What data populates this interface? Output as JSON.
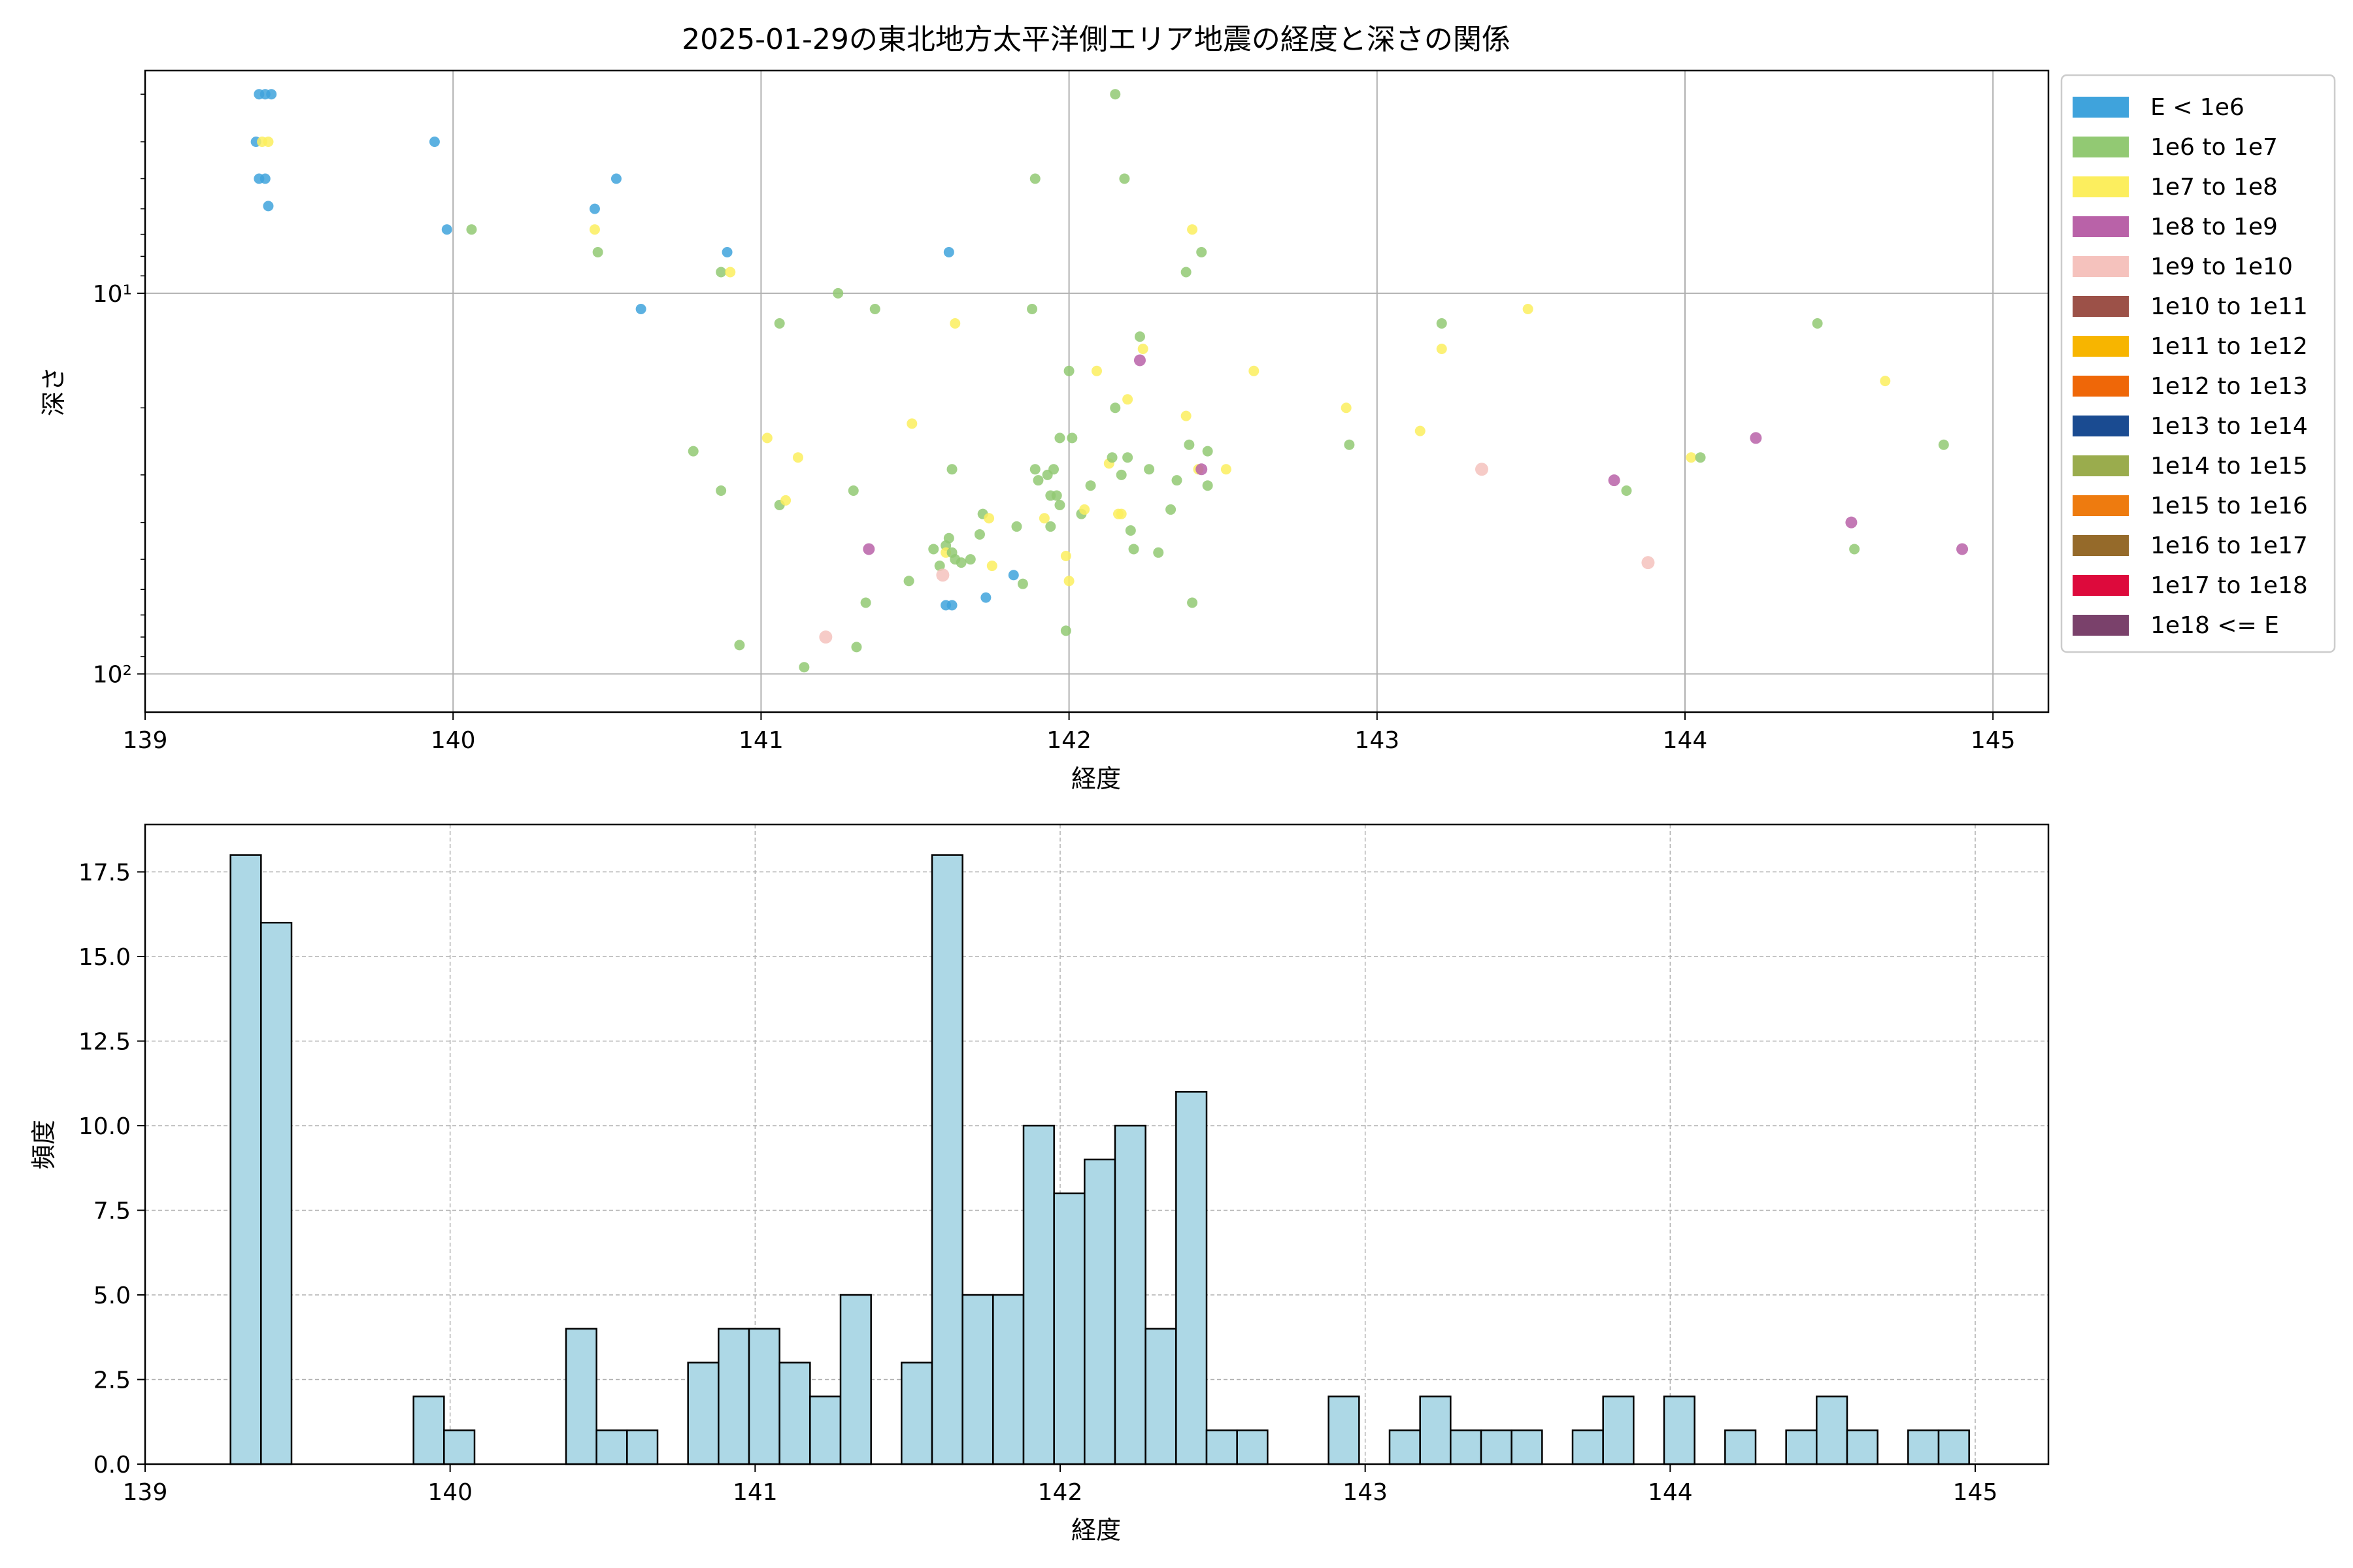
{
  "chart_data": [
    {
      "type": "scatter",
      "title": "2025-01-29の東北地方太平洋側エリア地震の経度と深さの関係",
      "xlabel": "経度",
      "ylabel": "深さ",
      "xlim": [
        139,
        145.18
      ],
      "ylim": [
        2.6,
        126
      ],
      "yscale": "log",
      "y_inverted": true,
      "grid": true,
      "legend_position": "outside-right",
      "xticks": [
        139,
        140,
        141,
        142,
        143,
        144,
        145
      ],
      "xtick_labels": [
        "139",
        "140",
        "141",
        "142",
        "143",
        "144",
        "145"
      ],
      "yticks": [
        10,
        100
      ],
      "ytick_labels": [
        "10¹",
        "10²"
      ],
      "legend": [
        {
          "label": "E < 1e6",
          "color": "#3fa3dc"
        },
        {
          "label": "1e6 to 1e7",
          "color": "#92c973"
        },
        {
          "label": "1e7 to 1e8",
          "color": "#fcee5e"
        },
        {
          "label": "1e8 to 1e9",
          "color": "#b962a8"
        },
        {
          "label": "1e9 to 1e10",
          "color": "#f5c2bd"
        },
        {
          "label": "1e10 to 1e11",
          "color": "#9c5148"
        },
        {
          "label": "1e11 to 1e12",
          "color": "#f7b500"
        },
        {
          "label": "1e12 to 1e13",
          "color": "#ef6708"
        },
        {
          "label": "1e13 to 1e14",
          "color": "#1a4b91"
        },
        {
          "label": "1e14 to 1e15",
          "color": "#9aac4d"
        },
        {
          "label": "1e15 to 1e16",
          "color": "#ee7b0f"
        },
        {
          "label": "1e16 to 1e17",
          "color": "#956a2a"
        },
        {
          "label": "1e17 to 1e18",
          "color": "#dd0a3c"
        },
        {
          "label": "1e18 <= E",
          "color": "#7a416b"
        }
      ],
      "points": [
        {
          "x": 139.37,
          "y": 3.0,
          "c": 0
        },
        {
          "x": 139.39,
          "y": 3.0,
          "c": 0
        },
        {
          "x": 139.41,
          "y": 3.0,
          "c": 0
        },
        {
          "x": 139.36,
          "y": 4.0,
          "c": 0
        },
        {
          "x": 139.38,
          "y": 4.0,
          "c": 2
        },
        {
          "x": 139.4,
          "y": 4.0,
          "c": 2
        },
        {
          "x": 139.37,
          "y": 5.0,
          "c": 0
        },
        {
          "x": 139.39,
          "y": 5.0,
          "c": 0
        },
        {
          "x": 139.4,
          "y": 5.9,
          "c": 0
        },
        {
          "x": 139.94,
          "y": 4.0,
          "c": 0
        },
        {
          "x": 139.98,
          "y": 6.8,
          "c": 0
        },
        {
          "x": 140.06,
          "y": 6.8,
          "c": 1
        },
        {
          "x": 140.46,
          "y": 6.0,
          "c": 0
        },
        {
          "x": 140.46,
          "y": 6.8,
          "c": 2
        },
        {
          "x": 140.47,
          "y": 7.8,
          "c": 1
        },
        {
          "x": 140.53,
          "y": 5.0,
          "c": 0
        },
        {
          "x": 140.61,
          "y": 11.0,
          "c": 0
        },
        {
          "x": 140.87,
          "y": 8.8,
          "c": 1
        },
        {
          "x": 140.9,
          "y": 8.8,
          "c": 2
        },
        {
          "x": 140.89,
          "y": 7.8,
          "c": 0
        },
        {
          "x": 140.78,
          "y": 26.0,
          "c": 1
        },
        {
          "x": 140.87,
          "y": 33.0,
          "c": 1
        },
        {
          "x": 140.93,
          "y": 84.0,
          "c": 1
        },
        {
          "x": 141.02,
          "y": 24.0,
          "c": 2
        },
        {
          "x": 141.06,
          "y": 12.0,
          "c": 1
        },
        {
          "x": 141.06,
          "y": 36.0,
          "c": 1
        },
        {
          "x": 141.08,
          "y": 35.0,
          "c": 2
        },
        {
          "x": 141.12,
          "y": 27.0,
          "c": 2
        },
        {
          "x": 141.14,
          "y": 96.0,
          "c": 1
        },
        {
          "x": 141.21,
          "y": 80.0,
          "c": 4
        },
        {
          "x": 141.25,
          "y": 10.0,
          "c": 1
        },
        {
          "x": 141.3,
          "y": 33.0,
          "c": 1
        },
        {
          "x": 141.31,
          "y": 85.0,
          "c": 1
        },
        {
          "x": 141.34,
          "y": 65.0,
          "c": 1
        },
        {
          "x": 141.35,
          "y": 47.0,
          "c": 3
        },
        {
          "x": 141.37,
          "y": 11.0,
          "c": 1
        },
        {
          "x": 141.48,
          "y": 57.0,
          "c": 1
        },
        {
          "x": 141.49,
          "y": 22.0,
          "c": 2
        },
        {
          "x": 141.56,
          "y": 47.0,
          "c": 1
        },
        {
          "x": 141.58,
          "y": 52.0,
          "c": 1
        },
        {
          "x": 141.59,
          "y": 55.0,
          "c": 4
        },
        {
          "x": 141.6,
          "y": 46.0,
          "c": 1
        },
        {
          "x": 141.6,
          "y": 48.0,
          "c": 2
        },
        {
          "x": 141.61,
          "y": 44.0,
          "c": 1
        },
        {
          "x": 141.62,
          "y": 48.0,
          "c": 1
        },
        {
          "x": 141.63,
          "y": 50.0,
          "c": 1
        },
        {
          "x": 141.6,
          "y": 66.0,
          "c": 0
        },
        {
          "x": 141.62,
          "y": 66.0,
          "c": 0
        },
        {
          "x": 141.61,
          "y": 7.8,
          "c": 0
        },
        {
          "x": 141.62,
          "y": 29.0,
          "c": 1
        },
        {
          "x": 141.63,
          "y": 12.0,
          "c": 2
        },
        {
          "x": 141.65,
          "y": 51.0,
          "c": 1
        },
        {
          "x": 141.68,
          "y": 50.0,
          "c": 1
        },
        {
          "x": 141.71,
          "y": 43.0,
          "c": 1
        },
        {
          "x": 141.72,
          "y": 38.0,
          "c": 1
        },
        {
          "x": 141.73,
          "y": 63.0,
          "c": 0
        },
        {
          "x": 141.74,
          "y": 39.0,
          "c": 2
        },
        {
          "x": 141.75,
          "y": 52.0,
          "c": 2
        },
        {
          "x": 141.82,
          "y": 55.0,
          "c": 0
        },
        {
          "x": 141.83,
          "y": 41.0,
          "c": 1
        },
        {
          "x": 141.85,
          "y": 58.0,
          "c": 1
        },
        {
          "x": 141.88,
          "y": 11.0,
          "c": 1
        },
        {
          "x": 141.89,
          "y": 5.0,
          "c": 1
        },
        {
          "x": 141.89,
          "y": 29.0,
          "c": 1
        },
        {
          "x": 141.9,
          "y": 31.0,
          "c": 1
        },
        {
          "x": 141.92,
          "y": 39.0,
          "c": 2
        },
        {
          "x": 141.93,
          "y": 30.0,
          "c": 1
        },
        {
          "x": 141.94,
          "y": 41.0,
          "c": 1
        },
        {
          "x": 141.94,
          "y": 34.0,
          "c": 1
        },
        {
          "x": 141.95,
          "y": 29.0,
          "c": 1
        },
        {
          "x": 141.96,
          "y": 34.0,
          "c": 1
        },
        {
          "x": 141.97,
          "y": 36.0,
          "c": 1
        },
        {
          "x": 141.97,
          "y": 24.0,
          "c": 1
        },
        {
          "x": 141.99,
          "y": 49.0,
          "c": 2
        },
        {
          "x": 141.99,
          "y": 77.0,
          "c": 1
        },
        {
          "x": 142.0,
          "y": 16.0,
          "c": 1
        },
        {
          "x": 142.0,
          "y": 57.0,
          "c": 2
        },
        {
          "x": 142.01,
          "y": 24.0,
          "c": 1
        },
        {
          "x": 142.04,
          "y": 38.0,
          "c": 1
        },
        {
          "x": 142.05,
          "y": 37.0,
          "c": 2
        },
        {
          "x": 142.07,
          "y": 32.0,
          "c": 1
        },
        {
          "x": 142.09,
          "y": 16.0,
          "c": 2
        },
        {
          "x": 142.13,
          "y": 28.0,
          "c": 2
        },
        {
          "x": 142.14,
          "y": 27.0,
          "c": 1
        },
        {
          "x": 142.15,
          "y": 20.0,
          "c": 1
        },
        {
          "x": 142.15,
          "y": 3.0,
          "c": 1
        },
        {
          "x": 142.16,
          "y": 38.0,
          "c": 2
        },
        {
          "x": 142.17,
          "y": 38.0,
          "c": 2
        },
        {
          "x": 142.17,
          "y": 30.0,
          "c": 1
        },
        {
          "x": 142.18,
          "y": 5.0,
          "c": 1
        },
        {
          "x": 142.19,
          "y": 19.0,
          "c": 2
        },
        {
          "x": 142.19,
          "y": 27.0,
          "c": 1
        },
        {
          "x": 142.2,
          "y": 42.0,
          "c": 1
        },
        {
          "x": 142.21,
          "y": 47.0,
          "c": 1
        },
        {
          "x": 142.23,
          "y": 13.0,
          "c": 1
        },
        {
          "x": 142.23,
          "y": 15.0,
          "c": 3
        },
        {
          "x": 142.24,
          "y": 14.0,
          "c": 2
        },
        {
          "x": 142.26,
          "y": 29.0,
          "c": 1
        },
        {
          "x": 142.29,
          "y": 48.0,
          "c": 1
        },
        {
          "x": 142.33,
          "y": 37.0,
          "c": 1
        },
        {
          "x": 142.35,
          "y": 31.0,
          "c": 1
        },
        {
          "x": 142.38,
          "y": 21.0,
          "c": 2
        },
        {
          "x": 142.39,
          "y": 25.0,
          "c": 1
        },
        {
          "x": 142.38,
          "y": 8.8,
          "c": 1
        },
        {
          "x": 142.4,
          "y": 6.8,
          "c": 2
        },
        {
          "x": 142.4,
          "y": 65.0,
          "c": 1
        },
        {
          "x": 142.43,
          "y": 7.8,
          "c": 1
        },
        {
          "x": 142.42,
          "y": 29.0,
          "c": 2
        },
        {
          "x": 142.43,
          "y": 29.0,
          "c": 3
        },
        {
          "x": 142.45,
          "y": 26.0,
          "c": 1
        },
        {
          "x": 142.45,
          "y": 32.0,
          "c": 1
        },
        {
          "x": 142.51,
          "y": 29.0,
          "c": 2
        },
        {
          "x": 142.6,
          "y": 16.0,
          "c": 2
        },
        {
          "x": 142.9,
          "y": 20.0,
          "c": 2
        },
        {
          "x": 142.91,
          "y": 25.0,
          "c": 1
        },
        {
          "x": 143.14,
          "y": 23.0,
          "c": 2
        },
        {
          "x": 143.21,
          "y": 12.0,
          "c": 1
        },
        {
          "x": 143.21,
          "y": 14.0,
          "c": 2
        },
        {
          "x": 143.34,
          "y": 29.0,
          "c": 4
        },
        {
          "x": 143.49,
          "y": 11.0,
          "c": 2
        },
        {
          "x": 143.77,
          "y": 31.0,
          "c": 3
        },
        {
          "x": 143.81,
          "y": 33.0,
          "c": 1
        },
        {
          "x": 143.88,
          "y": 51.0,
          "c": 4
        },
        {
          "x": 144.02,
          "y": 27.0,
          "c": 2
        },
        {
          "x": 144.05,
          "y": 27.0,
          "c": 1
        },
        {
          "x": 144.23,
          "y": 24.0,
          "c": 3
        },
        {
          "x": 144.43,
          "y": 12.0,
          "c": 1
        },
        {
          "x": 144.54,
          "y": 40.0,
          "c": 3
        },
        {
          "x": 144.55,
          "y": 47.0,
          "c": 1
        },
        {
          "x": 144.65,
          "y": 17.0,
          "c": 2
        },
        {
          "x": 144.84,
          "y": 25.0,
          "c": 1
        },
        {
          "x": 144.9,
          "y": 47.0,
          "c": 3
        }
      ]
    },
    {
      "type": "bar",
      "title": "",
      "xlabel": "経度",
      "ylabel": "頻度",
      "xlim": [
        139,
        145.24
      ],
      "ylim": [
        0,
        18.9
      ],
      "grid": true,
      "xticks": [
        139,
        140,
        141,
        142,
        143,
        144,
        145
      ],
      "xtick_labels": [
        "139",
        "140",
        "141",
        "142",
        "143",
        "144",
        "145"
      ],
      "yticks": [
        0,
        2.5,
        5.0,
        7.5,
        10.0,
        12.5,
        15.0,
        17.5
      ],
      "ytick_labels": [
        "0.0",
        "2.5",
        "5.0",
        "7.5",
        "10.0",
        "12.5",
        "15.0",
        "17.5"
      ],
      "bin_start": 139.28,
      "bin_width": 0.1,
      "counts": [
        18,
        16,
        0,
        0,
        0,
        0,
        2,
        1,
        0,
        0,
        0,
        4,
        1,
        1,
        0,
        3,
        4,
        4,
        3,
        2,
        5,
        0,
        3,
        18,
        5,
        5,
        10,
        8,
        9,
        10,
        4,
        11,
        1,
        1,
        0,
        0,
        2,
        0,
        1,
        2,
        1,
        1,
        1,
        0,
        1,
        2,
        0,
        2,
        0,
        1,
        0,
        1,
        2,
        1,
        0,
        1,
        1
      ],
      "bar_color": "#add8e6",
      "edge_color": "#000000"
    }
  ]
}
